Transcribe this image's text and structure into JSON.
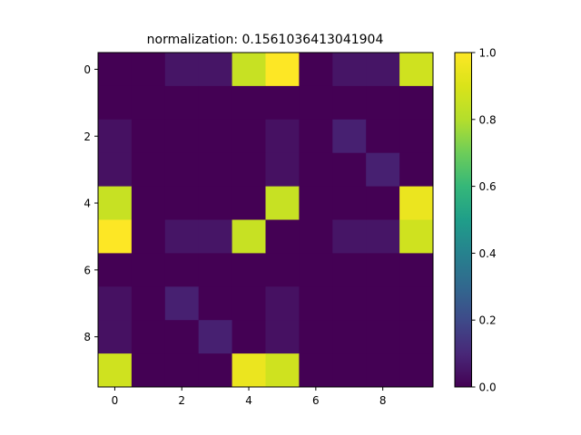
{
  "chart_data": {
    "type": "heatmap",
    "title": "normalization:  0.1561036413041904",
    "rows": 10,
    "cols": 10,
    "values": [
      [
        0.0,
        0.0,
        0.05,
        0.05,
        0.85,
        1.0,
        0.0,
        0.05,
        0.05,
        0.87
      ],
      [
        0.0,
        0.0,
        0.0,
        0.0,
        0.0,
        0.0,
        0.0,
        0.0,
        0.0,
        0.0
      ],
      [
        0.04,
        0.0,
        0.0,
        0.0,
        0.0,
        0.04,
        0.0,
        0.08,
        0.0,
        0.0
      ],
      [
        0.04,
        0.0,
        0.0,
        0.0,
        0.0,
        0.04,
        0.0,
        0.0,
        0.08,
        0.0
      ],
      [
        0.85,
        0.0,
        0.0,
        0.0,
        0.0,
        0.85,
        0.0,
        0.0,
        0.0,
        0.95
      ],
      [
        1.0,
        0.0,
        0.05,
        0.05,
        0.85,
        0.0,
        0.0,
        0.05,
        0.05,
        0.87
      ],
      [
        0.0,
        0.0,
        0.0,
        0.0,
        0.0,
        0.0,
        0.0,
        0.0,
        0.0,
        0.0
      ],
      [
        0.04,
        0.0,
        0.08,
        0.0,
        0.0,
        0.04,
        0.0,
        0.0,
        0.0,
        0.0
      ],
      [
        0.04,
        0.0,
        0.0,
        0.08,
        0.0,
        0.04,
        0.0,
        0.0,
        0.0,
        0.0
      ],
      [
        0.87,
        0.0,
        0.0,
        0.0,
        0.95,
        0.87,
        0.0,
        0.0,
        0.0,
        0.0
      ]
    ],
    "xticks": [
      "0",
      "2",
      "4",
      "6",
      "8"
    ],
    "yticks": [
      "0",
      "2",
      "4",
      "6",
      "8"
    ],
    "colorbar": {
      "min": 0.0,
      "max": 1.0,
      "ticks": [
        "0.0",
        "0.2",
        "0.4",
        "0.6",
        "0.8",
        "1.0"
      ],
      "colormap": "viridis"
    }
  }
}
